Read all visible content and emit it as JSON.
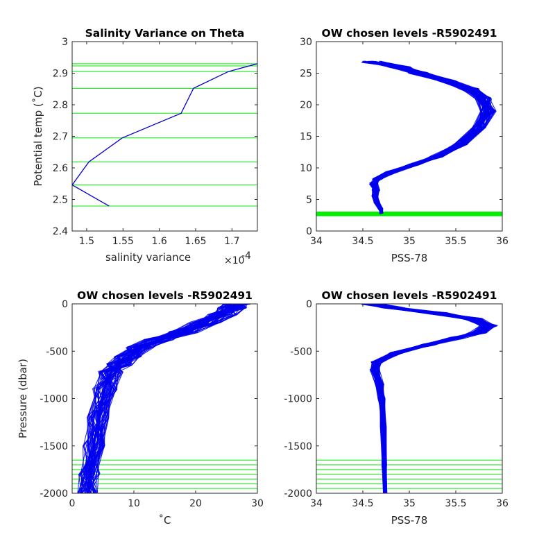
{
  "chart_data": [
    {
      "type": "line",
      "title": "Salinity Variance on Theta",
      "xlabel": "salinity variance",
      "x_multiplier": "×10",
      "x_multiplier_exp": "-4",
      "ylabel": "Potential temp (˚C)",
      "xlim": [
        1.48,
        1.735
      ],
      "ylim": [
        2.4,
        3.0
      ],
      "xticks": [
        "1.5",
        "1.55",
        "1.6",
        "1.65",
        "1.7"
      ],
      "xtick_values": [
        1.5,
        1.55,
        1.6,
        1.65,
        1.7
      ],
      "yticks": [
        "2.4",
        "2.5",
        "2.6",
        "2.7",
        "2.8",
        "2.9",
        "3"
      ],
      "ytick_values": [
        2.4,
        2.5,
        2.6,
        2.7,
        2.8,
        2.9,
        3.0
      ],
      "series": [
        {
          "color": "#0000cd",
          "x": [
            1.531,
            1.48,
            1.503,
            1.549,
            1.63,
            1.647,
            1.695,
            1.735
          ],
          "y": [
            2.479,
            2.546,
            2.619,
            2.695,
            2.773,
            2.852,
            2.905,
            2.93
          ]
        }
      ],
      "hlines": {
        "color": "#00ee00",
        "y": [
          2.479,
          2.546,
          2.619,
          2.695,
          2.773,
          2.852,
          2.905,
          2.923,
          2.93
        ]
      }
    },
    {
      "type": "line",
      "title": "OW chosen levels -R5902491",
      "xlabel": "PSS-78",
      "ylabel": "",
      "xlim": [
        34,
        36
      ],
      "ylim": [
        0,
        30
      ],
      "xticks": [
        "34",
        "34.5",
        "35",
        "35.5",
        "36"
      ],
      "xtick_values": [
        34,
        34.5,
        35,
        35.5,
        36
      ],
      "yticks": [
        "0",
        "5",
        "10",
        "15",
        "20",
        "25",
        "30"
      ],
      "ytick_values": [
        0,
        5,
        10,
        15,
        20,
        25,
        30
      ],
      "profile_color": "#0000ee",
      "profile": {
        "x": [
          34.7,
          34.69,
          34.65,
          34.63,
          34.64,
          34.62,
          34.66,
          34.8,
          35.05,
          35.3,
          35.55,
          35.75,
          35.85,
          35.8,
          35.65,
          35.4,
          35.1,
          34.9,
          34.6
        ],
        "y": [
          2.8,
          3.5,
          4.5,
          5.5,
          6.5,
          7.5,
          8.3,
          9.3,
          10.5,
          11.8,
          13.8,
          16.5,
          19.0,
          21.0,
          22.5,
          23.8,
          25.0,
          26.0,
          26.8
        ]
      },
      "hlines": {
        "color": "#00ee00",
        "y": [
          2.48,
          2.55,
          2.62,
          2.7,
          2.77,
          2.85,
          2.91,
          2.93
        ]
      }
    },
    {
      "type": "line",
      "title": "OW chosen levels -R5902491",
      "xlabel": "˚C",
      "ylabel": "Pressure (dbar)",
      "xlim": [
        0,
        30
      ],
      "ylim": [
        -2000,
        0
      ],
      "xticks": [
        "0",
        "10",
        "20",
        "30"
      ],
      "xtick_values": [
        0,
        10,
        20,
        30
      ],
      "yticks": [
        "-2000",
        "-1500",
        "-1000",
        "-500",
        "0"
      ],
      "ytick_values": [
        -2000,
        -1500,
        -1000,
        -500,
        0
      ],
      "profile_color": "#0000ee",
      "profile": {
        "x": [
          2.5,
          2.8,
          3.5,
          4.3,
          5.3,
          6.3,
          7.6,
          9.0,
          11.0,
          14.0,
          18.0,
          21.5,
          24.5,
          26.0,
          26.5
        ],
        "y": [
          -2000,
          -1800,
          -1500,
          -1200,
          -900,
          -720,
          -640,
          -560,
          -460,
          -380,
          -300,
          -200,
          -110,
          -40,
          0
        ]
      },
      "hlines": {
        "color": "#00ee00",
        "y": [
          -1650,
          -1700,
          -1750,
          -1800,
          -1850,
          -1900,
          -1950,
          -2000
        ]
      }
    },
    {
      "type": "line",
      "title": "OW chosen levels -R5902491",
      "xlabel": "PSS-78",
      "ylabel": "",
      "xlim": [
        34,
        36
      ],
      "ylim": [
        -2000,
        0
      ],
      "xticks": [
        "34",
        "34.5",
        "35",
        "35.5",
        "36"
      ],
      "xtick_values": [
        34,
        34.5,
        35,
        35.5,
        36
      ],
      "yticks": [
        "-2000",
        "-1500",
        "-1000",
        "-500",
        "0"
      ],
      "ytick_values": [
        -2000,
        -1500,
        -1000,
        -500,
        0
      ],
      "profile_color": "#0000ee",
      "profile": {
        "x": [
          34.74,
          34.73,
          34.72,
          34.7,
          34.68,
          34.63,
          34.65,
          34.85,
          35.2,
          35.5,
          35.75,
          35.85,
          35.7,
          35.3,
          34.8,
          34.6
        ],
        "y": [
          -2000,
          -1700,
          -1300,
          -1000,
          -850,
          -700,
          -620,
          -520,
          -430,
          -360,
          -300,
          -230,
          -160,
          -100,
          -40,
          0
        ]
      },
      "hlines": {
        "color": "#00ee00",
        "y": [
          -1650,
          -1700,
          -1750,
          -1800,
          -1850,
          -1900,
          -1950,
          -2000
        ]
      }
    }
  ]
}
